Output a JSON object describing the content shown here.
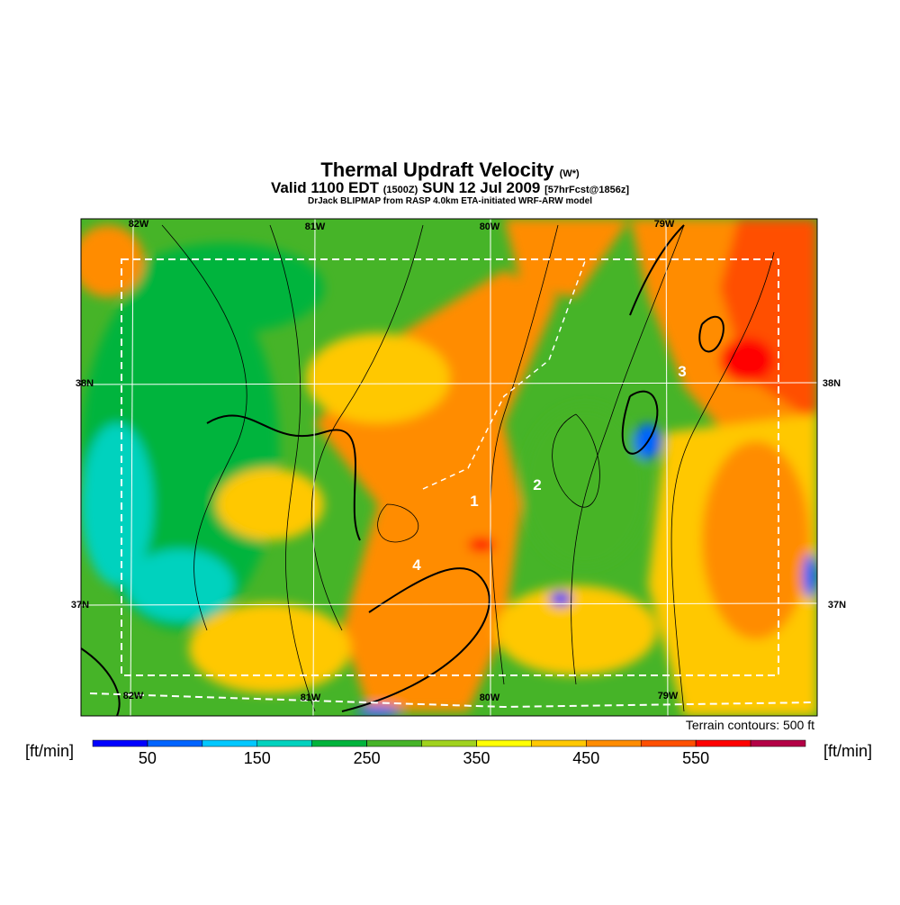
{
  "header": {
    "title": "Thermal Updraft Velocity",
    "title_symbol": "(W*)",
    "subtitle": {
      "valid": "Valid 1100 EDT",
      "zulu": "(1500Z)",
      "date": "SUN 12 Jul 2009",
      "forecast": "[57hrFcst@1856z]"
    },
    "source": "DrJack BLIPMAP from RASP 4.0km ETA-initiated WRF-ARW model"
  },
  "graticule": {
    "lon": [
      "82W",
      "81W",
      "80W",
      "79W"
    ],
    "lat": [
      "38N",
      "37N"
    ]
  },
  "sites": [
    "1",
    "2",
    "3",
    "4"
  ],
  "terrain_note": "Terrain contours: 500 ft",
  "colorbar": {
    "unit": "[ft/min]",
    "step": 50,
    "colors": [
      "#0000ff",
      "#0064ff",
      "#00c8ff",
      "#00d2be",
      "#00b43c",
      "#46b428",
      "#a0d21e",
      "#ffff00",
      "#ffc800",
      "#ff8c00",
      "#ff5000",
      "#ff0000",
      "#b40046"
    ],
    "labels": [
      50,
      150,
      250,
      350,
      450,
      550
    ]
  }
}
